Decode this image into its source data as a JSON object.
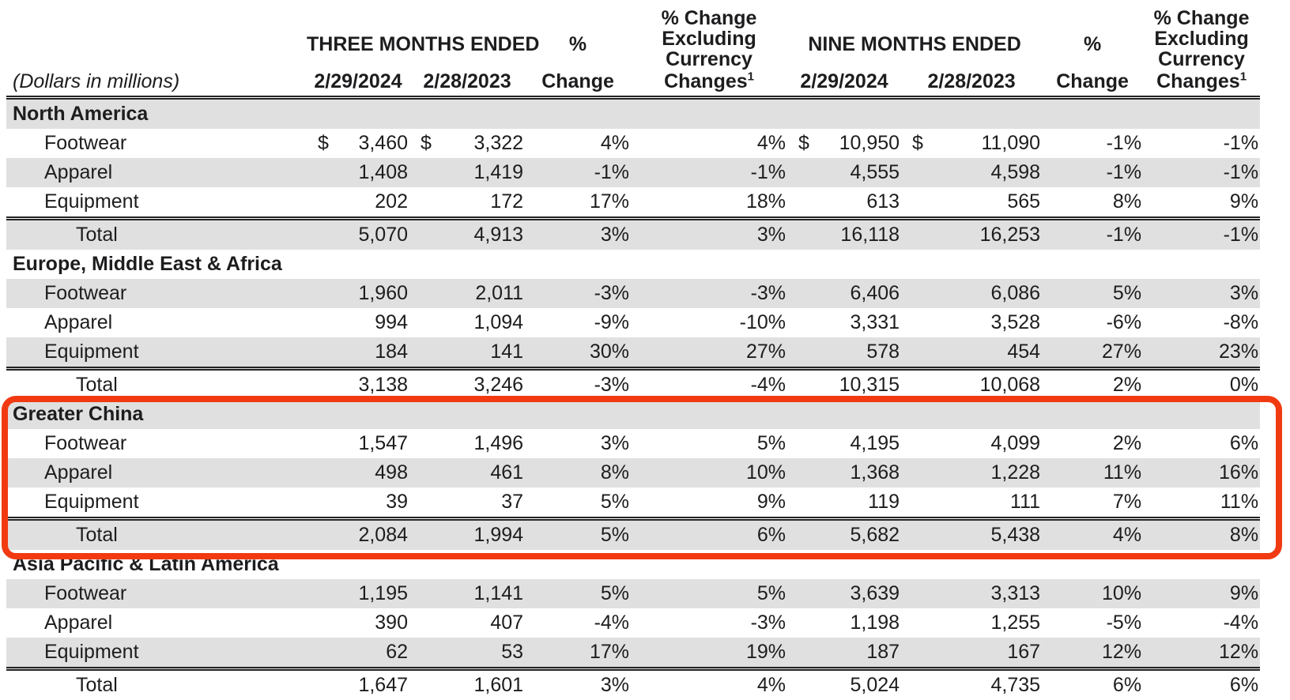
{
  "colors": {
    "stripe": "#e0e0e0",
    "highlight": "#f13a12",
    "text": "#1d1d1f"
  },
  "table": {
    "units_label": "(Dollars in millions)",
    "currency_symbol": "$",
    "header": {
      "period_groups": [
        {
          "label": "THREE MONTHS ENDED",
          "dates": [
            "2/29/2024",
            "2/28/2023"
          ]
        },
        {
          "label": "NINE MONTHS ENDED",
          "dates": [
            "2/29/2024",
            "2/28/2023"
          ]
        }
      ],
      "pct_change": {
        "top": "%",
        "bottom": "Change"
      },
      "pct_change_fx": {
        "lines": [
          "% Change",
          "Excluding",
          "Currency"
        ],
        "last": "Changes",
        "superscript": "1"
      }
    },
    "sections": [
      {
        "name": "North America",
        "highlighted": false,
        "rows": [
          {
            "label": "Footwear",
            "show_currency": true,
            "is_total": false,
            "values": [
              "3,460",
              "3,322",
              "4%",
              "4%",
              "10,950",
              "11,090",
              "-1%",
              "-1%"
            ]
          },
          {
            "label": "Apparel",
            "show_currency": false,
            "is_total": false,
            "values": [
              "1,408",
              "1,419",
              "-1%",
              "-1%",
              "4,555",
              "4,598",
              "-1%",
              "-1%"
            ]
          },
          {
            "label": "Equipment",
            "show_currency": false,
            "is_total": false,
            "values": [
              "202",
              "172",
              "17%",
              "18%",
              "613",
              "565",
              "8%",
              "9%"
            ]
          },
          {
            "label": "Total",
            "show_currency": false,
            "is_total": true,
            "values": [
              "5,070",
              "4,913",
              "3%",
              "3%",
              "16,118",
              "16,253",
              "-1%",
              "-1%"
            ]
          }
        ]
      },
      {
        "name": "Europe, Middle East & Africa",
        "highlighted": false,
        "rows": [
          {
            "label": "Footwear",
            "show_currency": false,
            "is_total": false,
            "values": [
              "1,960",
              "2,011",
              "-3%",
              "-3%",
              "6,406",
              "6,086",
              "5%",
              "3%"
            ]
          },
          {
            "label": "Apparel",
            "show_currency": false,
            "is_total": false,
            "values": [
              "994",
              "1,094",
              "-9%",
              "-10%",
              "3,331",
              "3,528",
              "-6%",
              "-8%"
            ]
          },
          {
            "label": "Equipment",
            "show_currency": false,
            "is_total": false,
            "values": [
              "184",
              "141",
              "30%",
              "27%",
              "578",
              "454",
              "27%",
              "23%"
            ]
          },
          {
            "label": "Total",
            "show_currency": false,
            "is_total": true,
            "values": [
              "3,138",
              "3,246",
              "-3%",
              "-4%",
              "10,315",
              "10,068",
              "2%",
              "0%"
            ]
          }
        ]
      },
      {
        "name": "Greater China",
        "highlighted": true,
        "rows": [
          {
            "label": "Footwear",
            "show_currency": false,
            "is_total": false,
            "values": [
              "1,547",
              "1,496",
              "3%",
              "5%",
              "4,195",
              "4,099",
              "2%",
              "6%"
            ]
          },
          {
            "label": "Apparel",
            "show_currency": false,
            "is_total": false,
            "values": [
              "498",
              "461",
              "8%",
              "10%",
              "1,368",
              "1,228",
              "11%",
              "16%"
            ]
          },
          {
            "label": "Equipment",
            "show_currency": false,
            "is_total": false,
            "values": [
              "39",
              "37",
              "5%",
              "9%",
              "119",
              "111",
              "7%",
              "11%"
            ]
          },
          {
            "label": "Total",
            "show_currency": false,
            "is_total": true,
            "values": [
              "2,084",
              "1,994",
              "5%",
              "6%",
              "5,682",
              "5,438",
              "4%",
              "8%"
            ]
          }
        ]
      },
      {
        "name": "Asia Pacific & Latin America",
        "highlighted": false,
        "rows": [
          {
            "label": "Footwear",
            "show_currency": false,
            "is_total": false,
            "values": [
              "1,195",
              "1,141",
              "5%",
              "5%",
              "3,639",
              "3,313",
              "10%",
              "9%"
            ]
          },
          {
            "label": "Apparel",
            "show_currency": false,
            "is_total": false,
            "values": [
              "390",
              "407",
              "-4%",
              "-3%",
              "1,198",
              "1,255",
              "-5%",
              "-4%"
            ]
          },
          {
            "label": "Equipment",
            "show_currency": false,
            "is_total": false,
            "values": [
              "62",
              "53",
              "17%",
              "19%",
              "187",
              "167",
              "12%",
              "12%"
            ]
          },
          {
            "label": "Total",
            "show_currency": false,
            "is_total": true,
            "values": [
              "1,647",
              "1,601",
              "3%",
              "4%",
              "5,024",
              "4,735",
              "6%",
              "6%"
            ]
          }
        ]
      }
    ]
  }
}
